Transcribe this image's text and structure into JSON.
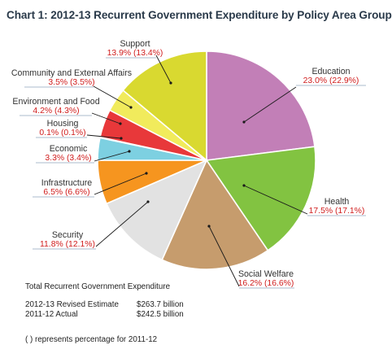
{
  "title": "Chart 1: 2012-13 Recurrent Government Expenditure by Policy Area Group",
  "chart_data": {
    "type": "pie",
    "unit": "%",
    "series_years": [
      "2012-13",
      "2011-12"
    ],
    "slices": [
      {
        "name": "Education",
        "value": 23.0,
        "prev": "22.9",
        "value_label": "23.0% (22.9%)",
        "color": "#c27fb7"
      },
      {
        "name": "Health",
        "value": 17.5,
        "prev": "17.1",
        "value_label": "17.5% (17.1%)",
        "color": "#82c341"
      },
      {
        "name": "Social Welfare",
        "value": 16.2,
        "prev": "16.6",
        "value_label": "16.2% (16.6%)",
        "color": "#c69c6d"
      },
      {
        "name": "Security",
        "value": 11.8,
        "prev": "12.1",
        "value_label": "11.8% (12.1%)",
        "color": "#e2e2e2"
      },
      {
        "name": "Infrastructure",
        "value": 6.5,
        "prev": "6.6",
        "value_label": "6.5% (6.6%)",
        "color": "#f6951f"
      },
      {
        "name": "Economic",
        "value": 3.3,
        "prev": "3.4",
        "value_label": "3.3% (3.4%)",
        "color": "#7dd0e1"
      },
      {
        "name": "Housing",
        "value": 0.1,
        "prev": "0.1",
        "value_label": "0.1% (0.1%)",
        "color": "#3a66b0"
      },
      {
        "name": "Environment and Food",
        "value": 4.2,
        "prev": "4.3",
        "value_label": "4.2% (4.3%)",
        "color": "#e8383a"
      },
      {
        "name": "Community and External Affairs",
        "value": 3.5,
        "prev": "3.5",
        "value_label": "3.5% (3.5%)",
        "color": "#f1eb5c"
      },
      {
        "name": "Support",
        "value": 13.9,
        "prev": "13.4",
        "value_label": "13.9% (13.4%)",
        "color": "#d9d930"
      }
    ]
  },
  "footer": {
    "heading": "Total Recurrent Government Expenditure",
    "rows": [
      {
        "label": "2012-13 Revised Estimate",
        "value": "$263.7 billion"
      },
      {
        "label": "2011-12 Actual",
        "value": "$242.5 billion"
      }
    ],
    "note": "( ) represents percentage for 2011-12"
  }
}
